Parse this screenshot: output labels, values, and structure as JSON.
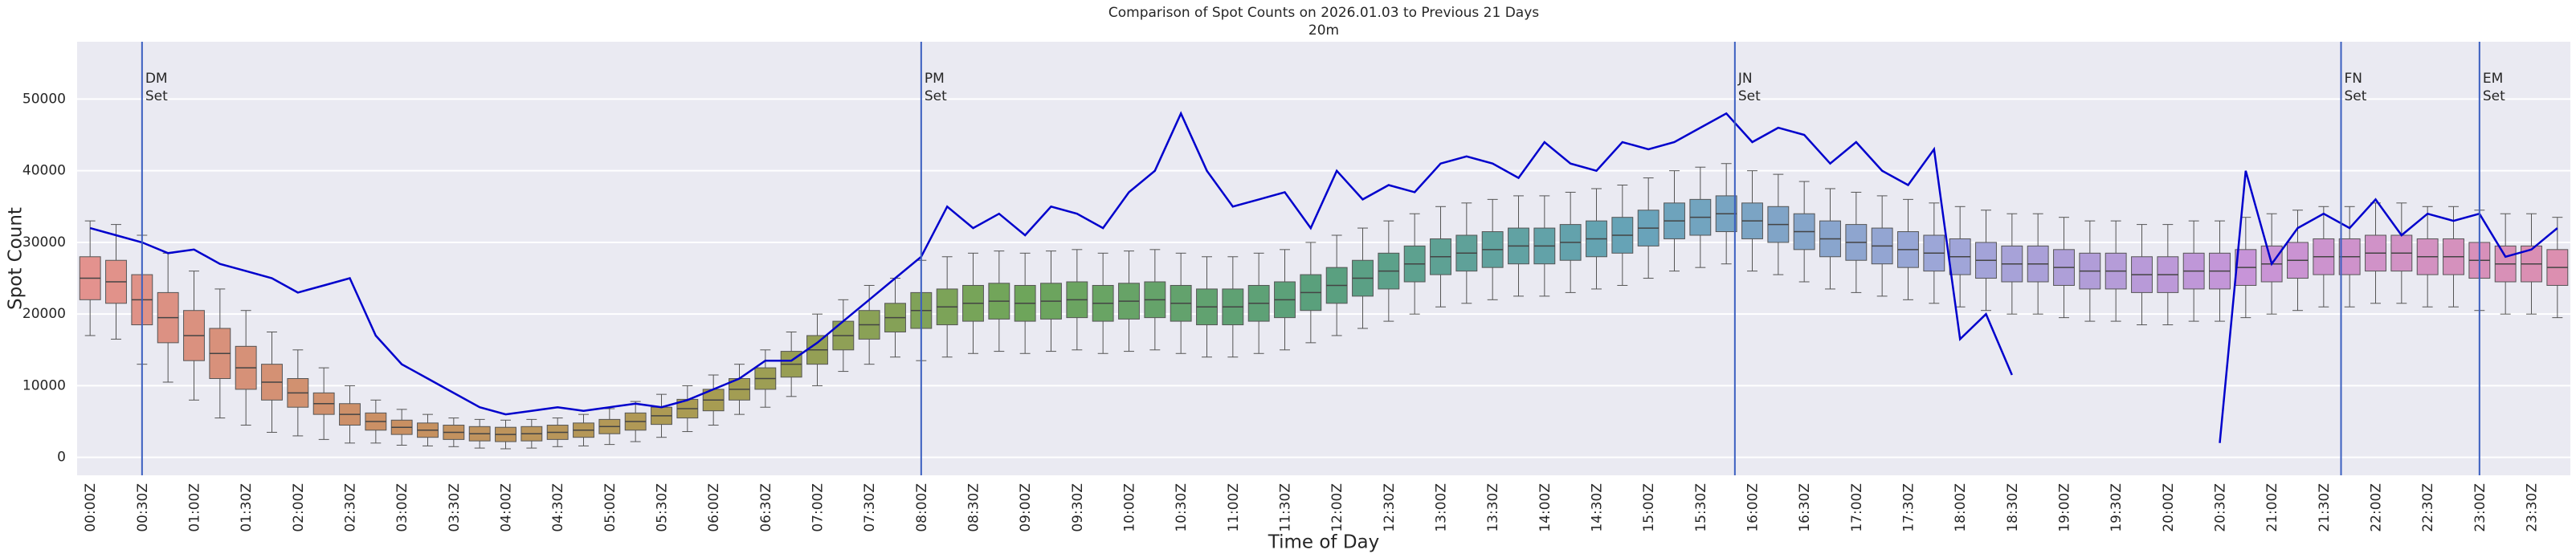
{
  "chart_data": {
    "type": "box",
    "title": "Comparison of Spot Counts on 2026.01.03 to Previous 21 Days",
    "subtitle": "20m",
    "xlabel": "Time of Day",
    "ylabel": "Spot Count",
    "categories": [
      "00:00Z",
      null,
      "00:30Z",
      null,
      "01:00Z",
      null,
      "01:30Z",
      null,
      "02:00Z",
      null,
      "02:30Z",
      null,
      "03:00Z",
      null,
      "03:30Z",
      null,
      "04:00Z",
      null,
      "04:30Z",
      null,
      "05:00Z",
      null,
      "05:30Z",
      null,
      "06:00Z",
      null,
      "06:30Z",
      null,
      "07:00Z",
      null,
      "07:30Z",
      null,
      "08:00Z",
      null,
      "08:30Z",
      null,
      "09:00Z",
      null,
      "09:30Z",
      null,
      "10:00Z",
      null,
      "10:30Z",
      null,
      "11:00Z",
      null,
      "11:30Z",
      null,
      "12:00Z",
      null,
      "12:30Z",
      null,
      "13:00Z",
      null,
      "13:30Z",
      null,
      "14:00Z",
      null,
      "14:30Z",
      null,
      "15:00Z",
      null,
      "15:30Z",
      null,
      "16:00Z",
      null,
      "16:30Z",
      null,
      "17:00Z",
      null,
      "17:30Z",
      null,
      "18:00Z",
      null,
      "18:30Z",
      null,
      "19:00Z",
      null,
      "19:30Z",
      null,
      "20:00Z",
      null,
      "20:30Z",
      null,
      "21:00Z",
      null,
      "21:30Z",
      null,
      "22:00Z",
      null,
      "22:30Z",
      null,
      "23:00Z",
      null,
      "23:30Z",
      null
    ],
    "boxes": {
      "median": [
        25000,
        24500,
        22000,
        19500,
        17000,
        14500,
        12500,
        10500,
        9000,
        7500,
        6000,
        5000,
        4200,
        3800,
        3500,
        3300,
        3200,
        3300,
        3500,
        3800,
        4300,
        5000,
        5800,
        6800,
        8000,
        9500,
        11000,
        13000,
        15000,
        17000,
        18500,
        19500,
        20500,
        21000,
        21500,
        21800,
        21500,
        21800,
        22000,
        21500,
        21800,
        22000,
        21500,
        21000,
        21000,
        21500,
        22000,
        23000,
        24000,
        25000,
        26000,
        27000,
        28000,
        28500,
        29000,
        29500,
        29500,
        30000,
        30500,
        31000,
        32000,
        33000,
        33500,
        34000,
        33000,
        32500,
        31500,
        30500,
        30000,
        29500,
        29000,
        28500,
        28000,
        27500,
        27000,
        27000,
        26500,
        26000,
        26000,
        25500,
        25500,
        26000,
        26000,
        26500,
        27000,
        27500,
        28000,
        28000,
        28500,
        28500,
        28000,
        28000,
        27500,
        27000,
        27000,
        26500
      ],
      "q1": [
        22000,
        21500,
        18500,
        16000,
        13500,
        11000,
        9500,
        8000,
        7000,
        6000,
        4500,
        3800,
        3200,
        2800,
        2500,
        2300,
        2200,
        2300,
        2500,
        2800,
        3300,
        3800,
        4600,
        5500,
        6500,
        8000,
        9500,
        11200,
        13000,
        15000,
        16500,
        17500,
        18000,
        18500,
        19000,
        19300,
        19000,
        19300,
        19500,
        19000,
        19300,
        19500,
        19000,
        18500,
        18500,
        19000,
        19500,
        20500,
        21500,
        22500,
        23500,
        24500,
        25500,
        26000,
        26500,
        27000,
        27000,
        27500,
        28000,
        28500,
        29500,
        30500,
        31000,
        31500,
        30500,
        30000,
        29000,
        28000,
        27500,
        27000,
        26500,
        26000,
        25500,
        25000,
        24500,
        24500,
        24000,
        23500,
        23500,
        23000,
        23000,
        23500,
        23500,
        24000,
        24500,
        25000,
        25500,
        25500,
        26000,
        26000,
        25500,
        25500,
        25000,
        24500,
        24500,
        24000
      ],
      "q3": [
        28000,
        27500,
        25500,
        23000,
        20500,
        18000,
        15500,
        13000,
        11000,
        9000,
        7500,
        6200,
        5200,
        4800,
        4500,
        4300,
        4200,
        4300,
        4500,
        4800,
        5300,
        6200,
        7000,
        8100,
        9500,
        11000,
        12500,
        14800,
        17000,
        19000,
        20500,
        21500,
        23000,
        23500,
        24000,
        24300,
        24000,
        24300,
        24500,
        24000,
        24300,
        24500,
        24000,
        23500,
        23500,
        24000,
        24500,
        25500,
        26500,
        27500,
        28500,
        29500,
        30500,
        31000,
        31500,
        32000,
        32000,
        32500,
        33000,
        33500,
        34500,
        35500,
        36000,
        36500,
        35500,
        35000,
        34000,
        33000,
        32500,
        32000,
        31500,
        31000,
        30500,
        30000,
        29500,
        29500,
        29000,
        28500,
        28500,
        28000,
        28000,
        28500,
        28500,
        29000,
        29500,
        30000,
        30500,
        30500,
        31000,
        31000,
        30500,
        30500,
        30000,
        29500,
        29500,
        29000
      ],
      "whislo": [
        17000,
        16500,
        13000,
        10500,
        8000,
        5500,
        4500,
        3500,
        3000,
        2500,
        2000,
        2000,
        1700,
        1600,
        1500,
        1300,
        1200,
        1300,
        1500,
        1600,
        1800,
        2200,
        2800,
        3600,
        4500,
        6000,
        7000,
        8500,
        10000,
        12000,
        13000,
        14000,
        13500,
        14000,
        14500,
        14800,
        14500,
        14800,
        15000,
        14500,
        14800,
        15000,
        14500,
        14000,
        14000,
        14500,
        15000,
        16000,
        17000,
        18000,
        19000,
        20000,
        21000,
        21500,
        22000,
        22500,
        22500,
        23000,
        23500,
        24000,
        25000,
        26000,
        26500,
        27000,
        26000,
        25500,
        24500,
        23500,
        23000,
        22500,
        22000,
        21500,
        21000,
        20500,
        20000,
        20000,
        19500,
        19000,
        19000,
        18500,
        18500,
        19000,
        19000,
        19500,
        20000,
        20500,
        21000,
        21000,
        21500,
        21500,
        21000,
        21000,
        20500,
        20000,
        20000,
        19500
      ],
      "whishi": [
        33000,
        32500,
        31000,
        28500,
        26000,
        23500,
        20500,
        17500,
        15000,
        12500,
        10000,
        8000,
        6700,
        6000,
        5500,
        5300,
        5200,
        5300,
        5500,
        6000,
        6800,
        7800,
        8800,
        10000,
        11500,
        13000,
        15000,
        17500,
        20000,
        22000,
        24000,
        25000,
        27500,
        28000,
        28500,
        28800,
        28500,
        28800,
        29000,
        28500,
        28800,
        29000,
        28500,
        28000,
        28000,
        28500,
        29000,
        30000,
        31000,
        32000,
        33000,
        34000,
        35000,
        35500,
        36000,
        36500,
        36500,
        37000,
        37500,
        38000,
        39000,
        40000,
        40500,
        41000,
        40000,
        39500,
        38500,
        37500,
        37000,
        36500,
        36000,
        35500,
        35000,
        34500,
        34000,
        34000,
        33500,
        33000,
        33000,
        32500,
        32500,
        33000,
        33000,
        33500,
        34000,
        34500,
        35000,
        35000,
        35500,
        35500,
        35000,
        35000,
        34500,
        34000,
        34000,
        33500
      ]
    },
    "palette": [
      "#e3928e",
      "#c99062",
      "#a89c52",
      "#6fa55a",
      "#59a07e",
      "#66a3b8",
      "#9da6d8",
      "#c794d8",
      "#dc8fb0"
    ],
    "line": {
      "color": "#0000cc",
      "values": [
        32000,
        31000,
        30000,
        28500,
        29000,
        27000,
        26000,
        25000,
        23000,
        24000,
        25000,
        17000,
        13000,
        11000,
        9000,
        7000,
        6000,
        6500,
        7000,
        6500,
        7000,
        7500,
        7000,
        8000,
        9500,
        11000,
        13500,
        13500,
        16000,
        19000,
        22000,
        25000,
        28000,
        35000,
        32000,
        34000,
        31000,
        35000,
        34000,
        32000,
        37000,
        40000,
        48000,
        40000,
        35000,
        36000,
        37000,
        32000,
        40000,
        36000,
        38000,
        37000,
        41000,
        42000,
        41000,
        39000,
        44000,
        41000,
        40000,
        44000,
        43000,
        44000,
        46000,
        48000,
        44000,
        46000,
        45000,
        41000,
        44000,
        40000,
        38000,
        43000,
        16500,
        20000,
        11500,
        null,
        null,
        null,
        null,
        null,
        null,
        null,
        2000,
        40000,
        27000,
        32000,
        34000,
        32000,
        36000,
        31000,
        34000,
        33000,
        34000,
        28000,
        29000,
        32000
      ]
    },
    "vline_color": "#3b5fc0",
    "vlines": [
      {
        "x": 2,
        "label": [
          "DM",
          "Set"
        ]
      },
      {
        "x": 32,
        "label": [
          "PM",
          "Set"
        ]
      },
      {
        "x": 63.33,
        "label": [
          "JN",
          "Set"
        ]
      },
      {
        "x": 86.67,
        "label": [
          "FN",
          "Set"
        ]
      },
      {
        "x": 92,
        "label": [
          "EM",
          "Set"
        ]
      }
    ],
    "ylim": [
      -2500,
      58000
    ],
    "yticks": [
      0,
      10000,
      20000,
      30000,
      40000,
      50000
    ],
    "grid": true
  }
}
